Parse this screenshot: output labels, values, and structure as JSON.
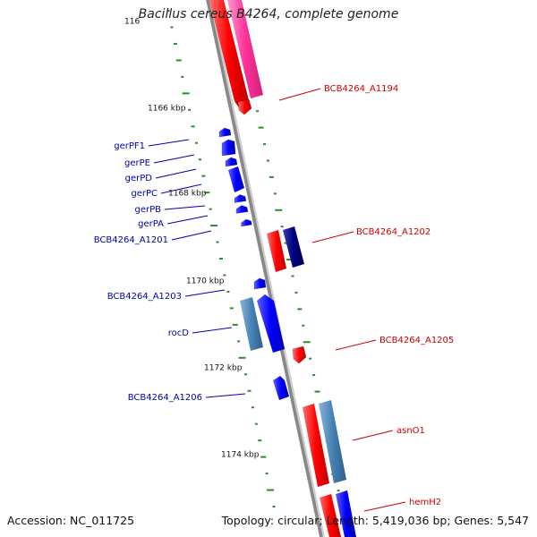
{
  "title": "Bacillus cereus B4264, complete genome",
  "footer": {
    "accession": "Accession: NC_011725",
    "topology": "Topology: circular; Length: 5,419,036 bp; Genes: 5,547"
  },
  "ticks": [
    {
      "label": "1166 kbp"
    },
    {
      "label": "1168 kbp"
    },
    {
      "label": "1170 kbp"
    },
    {
      "label": "1172 kbp"
    },
    {
      "label": "1174 kbp"
    },
    {
      "label": "116"
    }
  ],
  "left_genes": [
    {
      "label": "gerPF1"
    },
    {
      "label": "gerPE"
    },
    {
      "label": "gerPD"
    },
    {
      "label": "gerPC"
    },
    {
      "label": "gerPB"
    },
    {
      "label": "gerPA"
    },
    {
      "label": "BCB4264_A1201"
    },
    {
      "label": "BCB4264_A1203"
    },
    {
      "label": "rocD"
    },
    {
      "label": "BCB4264_A1206"
    }
  ],
  "right_genes": [
    {
      "label": "BCB4264_A1194"
    },
    {
      "label": "BCB4264_A1202"
    },
    {
      "label": "BCB4264_A1205"
    },
    {
      "label": "asnO1"
    },
    {
      "label": "hemH2"
    }
  ],
  "colors": {
    "backbone": "#888888",
    "forward": "#ff0000",
    "forward_alt": "#ff3399",
    "reverse": "#0000ff",
    "reverse_dark": "#000080",
    "steel": "#4682b4",
    "label_left": "#0000b0",
    "label_right": "#cc0000",
    "gc_ticks": "#2e8b2e"
  }
}
